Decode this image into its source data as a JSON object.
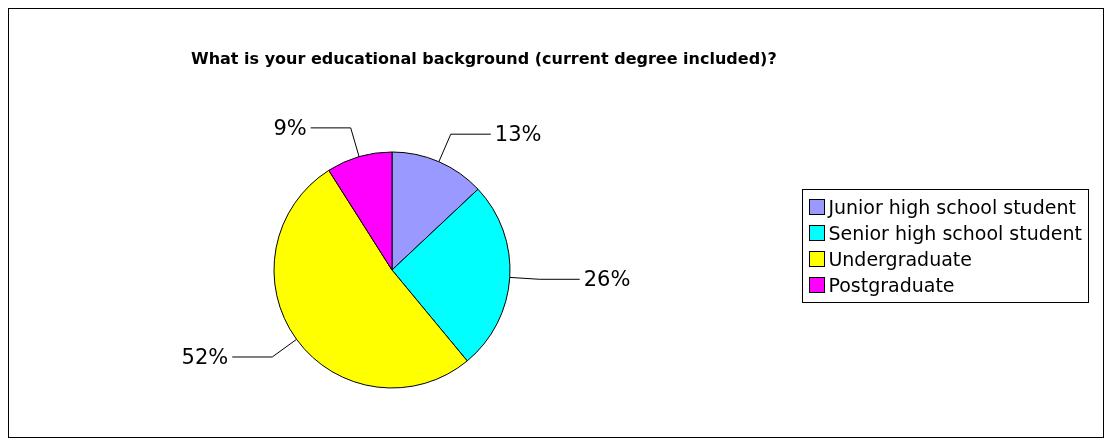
{
  "chart_data": {
    "type": "pie",
    "title": "What is your educational background (current degree included)?",
    "categories": [
      "Junior high school student",
      "Senior high school student",
      "Undergraduate",
      "Postgraduate"
    ],
    "values": [
      13,
      26,
      52,
      9
    ],
    "colors": [
      "#9999ff",
      "#00ffff",
      "#ffff00",
      "#ff00ff"
    ],
    "value_labels": [
      "13%",
      "26%",
      "52%",
      "9%"
    ],
    "legend": "right"
  }
}
